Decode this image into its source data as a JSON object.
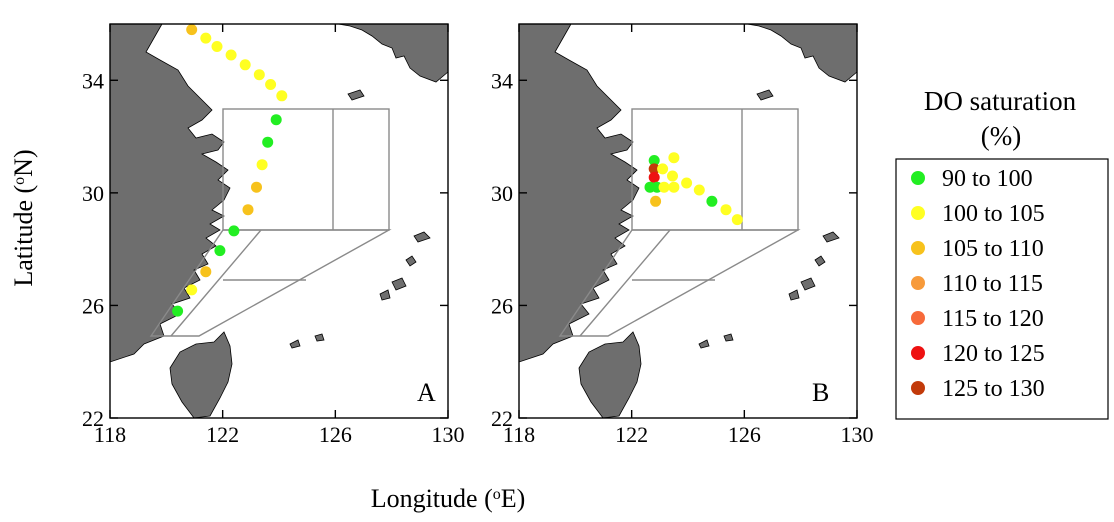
{
  "figure": {
    "xlabel": "Longitude (°E)",
    "ylabel": "Latitude (°N)",
    "xlabel_parts": {
      "pre": "Longitude (",
      "sup": "o",
      "post": "E)"
    },
    "ylabel_parts": {
      "pre": "Latitude (",
      "sup": "o",
      "post": "N)"
    }
  },
  "axes": {
    "x_ticks": [
      118,
      122,
      126,
      130
    ],
    "y_ticks": [
      22,
      26,
      30,
      34
    ],
    "xlim": [
      118,
      130
    ],
    "ylim": [
      22,
      36
    ]
  },
  "legend": {
    "title_line1": "DO saturation",
    "title_line2": "(%)",
    "items": [
      {
        "label": "90  to  100",
        "color": "#22ee22"
      },
      {
        "label": "100  to  105",
        "color": "#ffff22"
      },
      {
        "label": "105  to  110",
        "color": "#f7c21c"
      },
      {
        "label": "110  to  115",
        "color": "#f79a3a"
      },
      {
        "label": "115  to  120",
        "color": "#f76a3a"
      },
      {
        "label": "120  to  125",
        "color": "#ee1111"
      },
      {
        "label": "125  to  130",
        "color": "#c23a0a"
      }
    ]
  },
  "chart_data": [
    {
      "type": "scatter",
      "panel": "A",
      "title": "",
      "xlabel": "Longitude (°E)",
      "ylabel": "Latitude (°N)",
      "xlim": [
        118,
        130
      ],
      "ylim": [
        22,
        36
      ],
      "points": [
        {
          "lon": 120.9,
          "lat": 35.8,
          "color": "#f7c21c",
          "range": "105 to 110"
        },
        {
          "lon": 121.4,
          "lat": 35.5,
          "color": "#ffff22",
          "range": "100 to 105"
        },
        {
          "lon": 121.8,
          "lat": 35.2,
          "color": "#ffff22",
          "range": "100 to 105"
        },
        {
          "lon": 122.3,
          "lat": 34.9,
          "color": "#ffff22",
          "range": "100 to 105"
        },
        {
          "lon": 122.8,
          "lat": 34.55,
          "color": "#ffff22",
          "range": "100 to 105"
        },
        {
          "lon": 123.3,
          "lat": 34.2,
          "color": "#ffff22",
          "range": "100 to 105"
        },
        {
          "lon": 123.7,
          "lat": 33.85,
          "color": "#ffff22",
          "range": "100 to 105"
        },
        {
          "lon": 124.1,
          "lat": 33.45,
          "color": "#ffff22",
          "range": "100 to 105"
        },
        {
          "lon": 123.9,
          "lat": 32.6,
          "color": "#22ee22",
          "range": "90 to 100"
        },
        {
          "lon": 123.6,
          "lat": 31.8,
          "color": "#22ee22",
          "range": "90 to 100"
        },
        {
          "lon": 123.4,
          "lat": 31.0,
          "color": "#ffff22",
          "range": "100 to 105"
        },
        {
          "lon": 123.2,
          "lat": 30.2,
          "color": "#f7c21c",
          "range": "105 to 110"
        },
        {
          "lon": 122.9,
          "lat": 29.4,
          "color": "#f7c21c",
          "range": "105 to 110"
        },
        {
          "lon": 122.4,
          "lat": 28.65,
          "color": "#22ee22",
          "range": "90 to 100"
        },
        {
          "lon": 121.9,
          "lat": 27.95,
          "color": "#22ee22",
          "range": "90 to 100"
        },
        {
          "lon": 121.4,
          "lat": 27.2,
          "color": "#f7c21c",
          "range": "105 to 110"
        },
        {
          "lon": 120.9,
          "lat": 26.55,
          "color": "#ffff22",
          "range": "100 to 105"
        },
        {
          "lon": 120.4,
          "lat": 25.8,
          "color": "#22ee22",
          "range": "90 to 100"
        }
      ]
    },
    {
      "type": "scatter",
      "panel": "B",
      "title": "",
      "xlabel": "Longitude (°E)",
      "ylabel": "Latitude (°N)",
      "xlim": [
        118,
        130
      ],
      "ylim": [
        22,
        36
      ],
      "points": [
        {
          "lon": 122.8,
          "lat": 31.15,
          "color": "#22ee22",
          "range": "90 to 100"
        },
        {
          "lon": 122.8,
          "lat": 30.85,
          "color": "#c23a0a",
          "range": "125 to 130"
        },
        {
          "lon": 122.8,
          "lat": 30.55,
          "color": "#ee1111",
          "range": "120 to 125"
        },
        {
          "lon": 122.65,
          "lat": 30.2,
          "color": "#22ee22",
          "range": "90 to 100"
        },
        {
          "lon": 122.9,
          "lat": 30.2,
          "color": "#22ee22",
          "range": "90 to 100"
        },
        {
          "lon": 122.85,
          "lat": 29.7,
          "color": "#f7c21c",
          "range": "105 to 110"
        },
        {
          "lon": 123.1,
          "lat": 30.85,
          "color": "#ffff22",
          "range": "100 to 105"
        },
        {
          "lon": 123.5,
          "lat": 31.25,
          "color": "#ffff22",
          "range": "100 to 105"
        },
        {
          "lon": 123.45,
          "lat": 30.6,
          "color": "#ffff22",
          "range": "100 to 105"
        },
        {
          "lon": 123.15,
          "lat": 30.2,
          "color": "#ffff22",
          "range": "100 to 105"
        },
        {
          "lon": 123.5,
          "lat": 30.2,
          "color": "#ffff22",
          "range": "100 to 105"
        },
        {
          "lon": 123.95,
          "lat": 30.35,
          "color": "#ffff22",
          "range": "100 to 105"
        },
        {
          "lon": 124.4,
          "lat": 30.1,
          "color": "#ffff22",
          "range": "100 to 105"
        },
        {
          "lon": 124.85,
          "lat": 29.7,
          "color": "#22ee22",
          "range": "90 to 100"
        },
        {
          "lon": 125.35,
          "lat": 29.4,
          "color": "#ffff22",
          "range": "100 to 105"
        },
        {
          "lon": 125.75,
          "lat": 29.05,
          "color": "#ffff22",
          "range": "100 to 105"
        }
      ]
    }
  ]
}
